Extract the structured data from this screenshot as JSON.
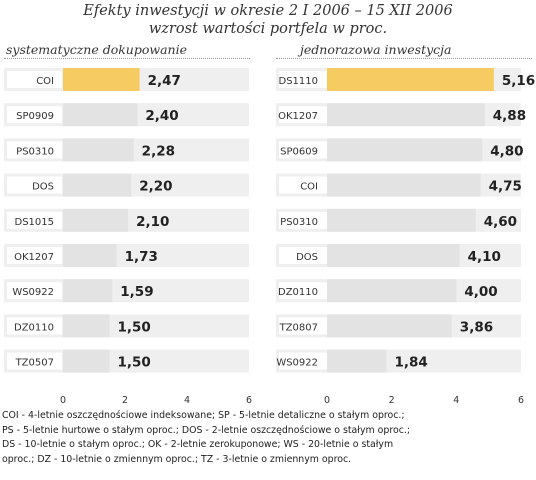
{
  "title_line1": "Efekty inwestycji  w okresie 2 I 2006 – 15 XII 2006",
  "title_line2": "wzrost wartości portfela w proc.",
  "colors": {
    "bar": "#e3e3e3",
    "bar_highlight": "#f6cb62",
    "track": "#efefef",
    "label_box": "#ffffff"
  },
  "chart_data": [
    {
      "type": "bar",
      "orientation": "horizontal",
      "title": "systematyczne dokupowanie",
      "categories": [
        "COI",
        "SP0909",
        "PS0310",
        "DOS",
        "DS1015",
        "OK1207",
        "WS0922",
        "DZ0110",
        "TZ0507"
      ],
      "values": [
        2.47,
        2.4,
        2.28,
        2.2,
        2.1,
        1.73,
        1.59,
        1.5,
        1.5
      ],
      "value_labels": [
        "2,47",
        "2,40",
        "2,28",
        "2,20",
        "2,10",
        "1,73",
        "1,59",
        "1,50",
        "1,50"
      ],
      "highlight_index": 0,
      "xlim": [
        0,
        6
      ],
      "xticks": [
        0,
        2,
        4,
        6
      ],
      "xlabel": "",
      "ylabel": ""
    },
    {
      "type": "bar",
      "orientation": "horizontal",
      "title": "jednorazowa inwestycja",
      "categories": [
        "DS1110",
        "OK1207",
        "SP0609",
        "COI",
        "PS0310",
        "DOS",
        "DZ0110",
        "TZ0807",
        "WS0922"
      ],
      "values": [
        5.16,
        4.88,
        4.8,
        4.75,
        4.6,
        4.1,
        4.0,
        3.86,
        1.84
      ],
      "value_labels": [
        "5,16",
        "4,88",
        "4,80",
        "4,75",
        "4,60",
        "4,10",
        "4,00",
        "3,86",
        "1,84"
      ],
      "highlight_index": 0,
      "xlim": [
        0,
        6
      ],
      "xticks": [
        0,
        2,
        4,
        6
      ],
      "xlabel": "",
      "ylabel": ""
    }
  ],
  "footnote": [
    "COI - 4-letnie oszczędnościowe indeksowane; SP - 5-letnie detaliczne o stałym oproc.;",
    "PS - 5-letnie hurtowe o stałym oproc.; DOS - 2-letnie oszczędnościowe o stałym oproc.;",
    "DS - 10-letnie o stałym oproc.; OK - 2-letnie zerokuponowe;  WS - 20-letnie o stałym",
    "oproc.; DZ - 10-letnie o zmiennym oproc.; TZ - 3-letnie o zmiennym oproc."
  ]
}
